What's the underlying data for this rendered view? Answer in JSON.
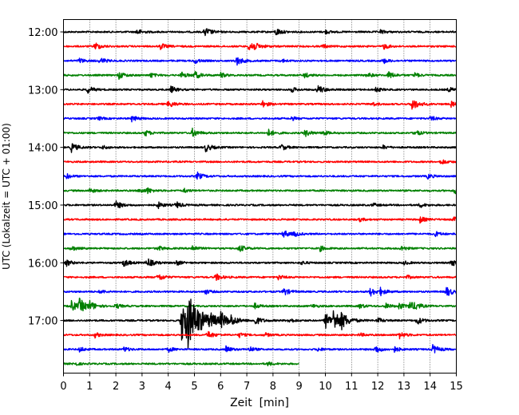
{
  "chart_data": {
    "type": "line",
    "subtype": "helicorder",
    "xlabel": "Zeit  [min]",
    "ylabel": "UTC (Lokalzeit = UTC + 01:00)",
    "xlim": [
      0,
      15
    ],
    "x_ticks": [
      "0",
      "1",
      "2",
      "3",
      "4",
      "5",
      "6",
      "7",
      "8",
      "9",
      "10",
      "11",
      "12",
      "13",
      "14",
      "15"
    ],
    "y_tick_labels": [
      "12:00",
      "13:00",
      "14:00",
      "15:00",
      "16:00",
      "17:00"
    ],
    "grid": "vertical dotted at each minute",
    "colors": [
      "#000000",
      "#ff0000",
      "#0000ff",
      "#008000"
    ],
    "traces": [
      {
        "start": "12:00",
        "color": "#000000",
        "end_min": 15,
        "events": [
          [
            2.8,
            0.5
          ],
          [
            5.4,
            0.7
          ],
          [
            8.1,
            0.6
          ],
          [
            10.0,
            0.3
          ],
          [
            12.1,
            0.3
          ]
        ]
      },
      {
        "start": "12:15",
        "color": "#ff0000",
        "end_min": 15,
        "events": [
          [
            1.2,
            0.6
          ],
          [
            3.7,
            0.5
          ],
          [
            7.1,
            1.1
          ],
          [
            9.9,
            0.3
          ],
          [
            12.2,
            0.5
          ]
        ]
      },
      {
        "start": "12:30",
        "color": "#0000ff",
        "end_min": 15,
        "events": [
          [
            0.6,
            0.4
          ],
          [
            1.4,
            0.5
          ],
          [
            5.0,
            0.4
          ],
          [
            6.6,
            0.7
          ],
          [
            8.3,
            0.3
          ],
          [
            12.2,
            0.4
          ]
        ]
      },
      {
        "start": "12:45",
        "color": "#008000",
        "end_min": 15,
        "events": [
          [
            2.1,
            0.6
          ],
          [
            3.3,
            0.4
          ],
          [
            4.5,
            0.5
          ],
          [
            5.0,
            0.6
          ],
          [
            6.0,
            0.4
          ],
          [
            9.2,
            0.4
          ],
          [
            11.6,
            0.4
          ],
          [
            12.4,
            0.6
          ],
          [
            13.4,
            0.4
          ]
        ]
      },
      {
        "start": "13:00",
        "color": "#000000",
        "end_min": 15,
        "events": [
          [
            0.9,
            0.6
          ],
          [
            4.1,
            0.5
          ],
          [
            8.7,
            0.4
          ],
          [
            9.7,
            0.7
          ],
          [
            11.9,
            0.4
          ],
          [
            14.7,
            0.4
          ]
        ]
      },
      {
        "start": "13:15",
        "color": "#ff0000",
        "end_min": 15,
        "events": [
          [
            4.0,
            0.6
          ],
          [
            7.6,
            0.5
          ],
          [
            11.8,
            0.3
          ],
          [
            13.3,
            0.9
          ],
          [
            14.8,
            0.4
          ]
        ]
      },
      {
        "start": "13:30",
        "color": "#0000ff",
        "end_min": 15,
        "events": [
          [
            1.3,
            0.3
          ],
          [
            2.6,
            0.5
          ],
          [
            8.7,
            0.3
          ],
          [
            14.0,
            0.4
          ]
        ]
      },
      {
        "start": "13:45",
        "color": "#008000",
        "end_min": 15,
        "events": [
          [
            3.1,
            0.5
          ],
          [
            4.9,
            0.7
          ],
          [
            7.8,
            0.6
          ],
          [
            9.2,
            0.6
          ],
          [
            9.9,
            0.4
          ],
          [
            13.4,
            0.5
          ]
        ]
      },
      {
        "start": "14:00",
        "color": "#000000",
        "end_min": 15,
        "events": [
          [
            0.3,
            0.7
          ],
          [
            1.5,
            0.3
          ],
          [
            5.4,
            0.7
          ],
          [
            8.3,
            0.5
          ],
          [
            12.2,
            0.3
          ]
        ]
      },
      {
        "start": "14:15",
        "color": "#ff0000",
        "end_min": 15,
        "events": [
          [
            14.4,
            0.5
          ]
        ]
      },
      {
        "start": "14:30",
        "color": "#0000ff",
        "end_min": 15,
        "events": [
          [
            0.1,
            0.4
          ],
          [
            5.1,
            0.6
          ],
          [
            13.9,
            0.4
          ]
        ]
      },
      {
        "start": "14:45",
        "color": "#008000",
        "end_min": 15,
        "events": [
          [
            1.0,
            0.4
          ],
          [
            2.9,
            0.4
          ],
          [
            3.2,
            0.4
          ],
          [
            4.6,
            0.3
          ],
          [
            14.9,
            0.6
          ]
        ]
      },
      {
        "start": "15:00",
        "color": "#000000",
        "end_min": 15,
        "events": [
          [
            2.0,
            0.6
          ],
          [
            3.6,
            0.5
          ],
          [
            4.3,
            0.5
          ],
          [
            11.8,
            0.3
          ],
          [
            13.6,
            0.4
          ]
        ]
      },
      {
        "start": "15:15",
        "color": "#ff0000",
        "end_min": 15,
        "events": [
          [
            11.3,
            0.3
          ],
          [
            13.6,
            0.5
          ],
          [
            14.9,
            0.4
          ]
        ]
      },
      {
        "start": "15:30",
        "color": "#0000ff",
        "end_min": 15,
        "events": [
          [
            8.4,
            0.6
          ],
          [
            8.8,
            0.4
          ],
          [
            14.2,
            0.4
          ]
        ]
      },
      {
        "start": "15:45",
        "color": "#008000",
        "end_min": 15,
        "events": [
          [
            0.3,
            0.4
          ],
          [
            3.6,
            0.4
          ],
          [
            4.9,
            0.5
          ],
          [
            6.7,
            0.6
          ],
          [
            9.8,
            0.4
          ],
          [
            12.9,
            0.4
          ]
        ]
      },
      {
        "start": "16:00",
        "color": "#000000",
        "end_min": 15,
        "events": [
          [
            0.1,
            0.5
          ],
          [
            2.3,
            0.6
          ],
          [
            3.2,
            0.7
          ],
          [
            4.3,
            0.4
          ],
          [
            9.1,
            0.3
          ],
          [
            13.0,
            0.3
          ],
          [
            14.8,
            0.6
          ]
        ]
      },
      {
        "start": "16:15",
        "color": "#ff0000",
        "end_min": 15,
        "events": [
          [
            3.6,
            0.6
          ],
          [
            5.8,
            0.6
          ],
          [
            8.2,
            0.4
          ],
          [
            13.1,
            0.3
          ]
        ]
      },
      {
        "start": "16:30",
        "color": "#0000ff",
        "end_min": 15,
        "events": [
          [
            1.4,
            0.3
          ],
          [
            5.4,
            0.4
          ],
          [
            8.4,
            0.6
          ],
          [
            11.7,
            0.7
          ],
          [
            12.1,
            0.5
          ],
          [
            14.6,
            0.8
          ]
        ]
      },
      {
        "start": "16:45",
        "color": "#008000",
        "end_min": 15,
        "events": [
          [
            0.3,
            0.8
          ],
          [
            0.6,
            1.0
          ],
          [
            1.0,
            0.6
          ],
          [
            2.0,
            0.4
          ],
          [
            7.3,
            0.4
          ],
          [
            9.5,
            0.3
          ],
          [
            11.3,
            0.4
          ],
          [
            12.3,
            0.4
          ],
          [
            12.8,
            0.5
          ],
          [
            13.2,
            0.7
          ],
          [
            13.4,
            0.5
          ]
        ]
      },
      {
        "start": "17:00",
        "color": "#000000",
        "end_min": 15,
        "events": [
          [
            4.5,
            3.4
          ],
          [
            4.7,
            2.4
          ],
          [
            5.6,
            0.6
          ],
          [
            6.0,
            1.0
          ],
          [
            6.4,
            0.6
          ],
          [
            7.3,
            0.7
          ],
          [
            8.6,
            0.4
          ],
          [
            10.0,
            1.2
          ],
          [
            10.3,
            1.4
          ],
          [
            10.6,
            0.9
          ],
          [
            12.0,
            0.4
          ],
          [
            13.5,
            0.6
          ]
        ]
      },
      {
        "start": "17:15",
        "color": "#ff0000",
        "end_min": 15,
        "events": [
          [
            1.2,
            0.4
          ],
          [
            5.5,
            0.6
          ],
          [
            6.7,
            0.4
          ],
          [
            7.7,
            0.3
          ],
          [
            11.3,
            0.3
          ],
          [
            12.8,
            0.6
          ]
        ]
      },
      {
        "start": "17:30",
        "color": "#0000ff",
        "end_min": 15,
        "events": [
          [
            0.6,
            0.4
          ],
          [
            2.3,
            0.4
          ],
          [
            4.0,
            0.4
          ],
          [
            6.2,
            0.5
          ],
          [
            7.1,
            0.4
          ],
          [
            9.7,
            0.3
          ],
          [
            11.9,
            0.6
          ],
          [
            12.6,
            0.5
          ],
          [
            14.1,
            0.7
          ]
        ]
      },
      {
        "start": "17:45",
        "color": "#008000",
        "end_min": 9,
        "events": [
          [
            0.4,
            0.3
          ],
          [
            7.8,
            0.3
          ]
        ]
      }
    ]
  }
}
